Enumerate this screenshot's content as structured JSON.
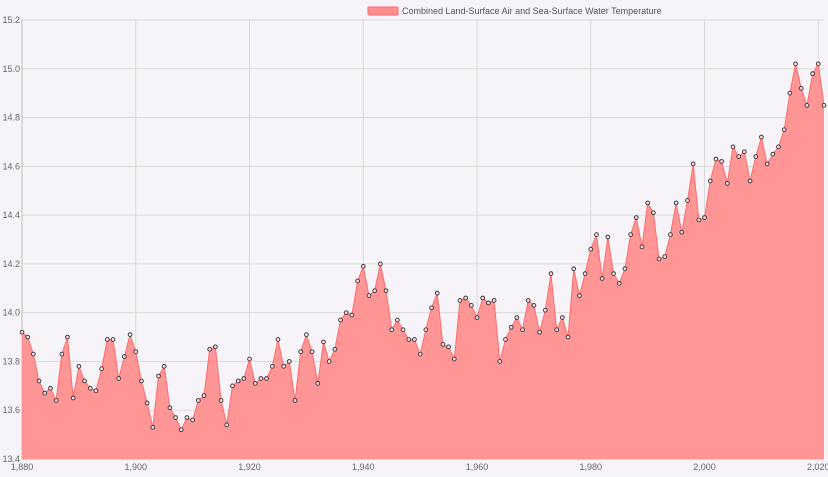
{
  "chart_data": {
    "type": "area",
    "title": "",
    "xlabel": "",
    "ylabel": "",
    "xlim": [
      1880,
      2021
    ],
    "ylim": [
      13.4,
      15.2
    ],
    "x_ticks": [
      1880,
      1900,
      1920,
      1940,
      1960,
      1980,
      2000,
      2020
    ],
    "x_tick_labels": [
      "1,880",
      "1,900",
      "1,920",
      "1,940",
      "1,960",
      "1,980",
      "2,000",
      "2,020"
    ],
    "y_ticks": [
      13.4,
      13.6,
      13.8,
      14.0,
      14.2,
      14.4,
      14.6,
      14.8,
      15.0,
      15.2
    ],
    "y_tick_labels": [
      "13.4",
      "13.6",
      "13.8",
      "14.0",
      "14.2",
      "14.4",
      "14.6",
      "14.8",
      "15.0",
      "15.2"
    ],
    "grid": true,
    "legend_position": "top-center",
    "series": [
      {
        "name": "Combined Land-Surface Air and Sea-Surface Water Temperature",
        "color": "#ff6b6b",
        "fill": "#ff8f8f",
        "x": [
          1880,
          1881,
          1882,
          1883,
          1884,
          1885,
          1886,
          1887,
          1888,
          1889,
          1890,
          1891,
          1892,
          1893,
          1894,
          1895,
          1896,
          1897,
          1898,
          1899,
          1900,
          1901,
          1902,
          1903,
          1904,
          1905,
          1906,
          1907,
          1908,
          1909,
          1910,
          1911,
          1912,
          1913,
          1914,
          1915,
          1916,
          1917,
          1918,
          1919,
          1920,
          1921,
          1922,
          1923,
          1924,
          1925,
          1926,
          1927,
          1928,
          1929,
          1930,
          1931,
          1932,
          1933,
          1934,
          1935,
          1936,
          1937,
          1938,
          1939,
          1940,
          1941,
          1942,
          1943,
          1944,
          1945,
          1946,
          1947,
          1948,
          1949,
          1950,
          1951,
          1952,
          1953,
          1954,
          1955,
          1956,
          1957,
          1958,
          1959,
          1960,
          1961,
          1962,
          1963,
          1964,
          1965,
          1966,
          1967,
          1968,
          1969,
          1970,
          1971,
          1972,
          1973,
          1974,
          1975,
          1976,
          1977,
          1978,
          1979,
          1980,
          1981,
          1982,
          1983,
          1984,
          1985,
          1986,
          1987,
          1988,
          1989,
          1990,
          1991,
          1992,
          1993,
          1994,
          1995,
          1996,
          1997,
          1998,
          1999,
          2000,
          2001,
          2002,
          2003,
          2004,
          2005,
          2006,
          2007,
          2008,
          2009,
          2010,
          2011,
          2012,
          2013,
          2014,
          2015,
          2016,
          2017,
          2018,
          2019,
          2020,
          2021
        ],
        "values": [
          13.92,
          13.9,
          13.83,
          13.72,
          13.67,
          13.69,
          13.64,
          13.83,
          13.9,
          13.65,
          13.78,
          13.72,
          13.69,
          13.68,
          13.77,
          13.89,
          13.89,
          13.73,
          13.82,
          13.91,
          13.84,
          13.72,
          13.63,
          13.53,
          13.74,
          13.78,
          13.61,
          13.57,
          13.52,
          13.57,
          13.56,
          13.64,
          13.66,
          13.85,
          13.86,
          13.64,
          13.54,
          13.7,
          13.72,
          13.73,
          13.81,
          13.71,
          13.73,
          13.73,
          13.78,
          13.89,
          13.78,
          13.8,
          13.64,
          13.84,
          13.91,
          13.84,
          13.71,
          13.88,
          13.8,
          13.85,
          13.97,
          14.0,
          13.99,
          14.13,
          14.19,
          14.07,
          14.09,
          14.2,
          14.09,
          13.93,
          13.97,
          13.93,
          13.89,
          13.89,
          13.83,
          13.93,
          14.02,
          14.08,
          13.87,
          13.86,
          13.81,
          14.05,
          14.06,
          14.03,
          13.98,
          14.06,
          14.04,
          14.05,
          13.8,
          13.89,
          13.94,
          13.98,
          13.93,
          14.05,
          14.03,
          13.92,
          14.01,
          14.16,
          13.93,
          13.98,
          13.9,
          14.18,
          14.07,
          14.16,
          14.26,
          14.32,
          14.14,
          14.31,
          14.16,
          14.12,
          14.18,
          14.32,
          14.39,
          14.27,
          14.45,
          14.41,
          14.22,
          14.23,
          14.32,
          14.45,
          14.33,
          14.46,
          14.61,
          14.38,
          14.39,
          14.54,
          14.63,
          14.62,
          14.53,
          14.68,
          14.64,
          14.66,
          14.54,
          14.64,
          14.72,
          14.61,
          14.65,
          14.68,
          14.75,
          14.9,
          15.02,
          14.92,
          14.85,
          14.98,
          15.02,
          14.85
        ]
      }
    ]
  }
}
